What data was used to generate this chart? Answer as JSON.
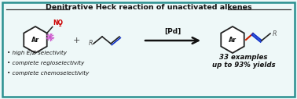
{
  "title": "Denitrative Heck reaction of unactivated alkenes",
  "title_fontsize": 6.8,
  "title_fontweight": "bold",
  "bg_color": "#eef8f8",
  "border_color": "#2a9090",
  "border_lw": 1.8,
  "bullet_texts": [
    "• high E/Z selectivity",
    "• complete regioselectivity",
    "• complete chemoselectivity"
  ],
  "bullet_fontsize": 5.2,
  "result_text": "33 examples\nup to 93% yields",
  "result_fontsize": 6.2,
  "pd_label": "[Pd]",
  "pd_fontsize": 6.5,
  "arrow_color": "#111111",
  "no2_color": "#cc0000",
  "bond_color_red": "#cc2200",
  "bond_color_blue": "#1133cc",
  "bond_color_dark": "#222222",
  "bond_color_gray": "#555555",
  "plus_fontsize": 8,
  "hex_color": "#222222",
  "hex_lw": 1.3,
  "ar_fontsize": 5.8,
  "r_fontsize": 5.8,
  "pink_color": "#cc55cc",
  "line_color": "#333333"
}
